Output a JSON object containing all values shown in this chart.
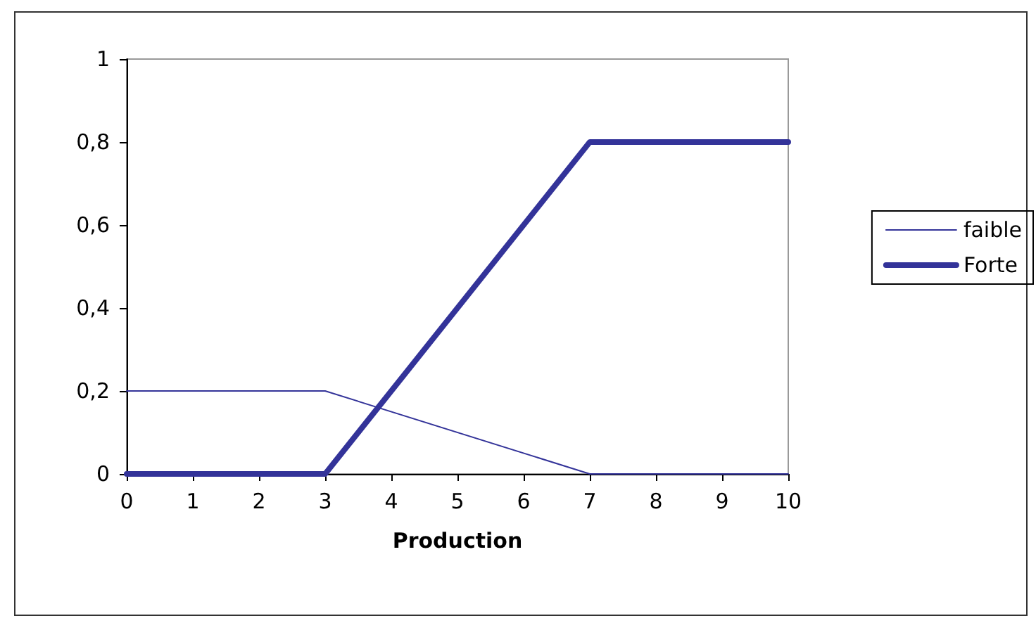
{
  "chart_data": {
    "type": "line",
    "xlabel": "Production",
    "x": [
      0,
      3,
      7,
      10
    ],
    "series": [
      {
        "name": "faible",
        "color": "#333399",
        "values": [
          0.2,
          0.2,
          0,
          0
        ]
      },
      {
        "name": "Forte",
        "color": "#333399",
        "values": [
          0,
          0,
          0.8,
          0.8
        ]
      }
    ],
    "xlim": [
      0,
      10
    ],
    "xticks": [
      0,
      1,
      2,
      3,
      4,
      5,
      6,
      7,
      8,
      9,
      10
    ],
    "ylim": [
      0,
      1
    ],
    "yticks": [
      0,
      {
        "value": 0.2,
        "label": "0,2"
      },
      {
        "value": 0.4,
        "label": "0,4"
      },
      {
        "value": 0.6,
        "label": "0,6"
      },
      {
        "value": 0.8,
        "label": "0,8"
      },
      1
    ],
    "grid": false,
    "legend": "right",
    "marker": "none",
    "line_style": "solid"
  }
}
